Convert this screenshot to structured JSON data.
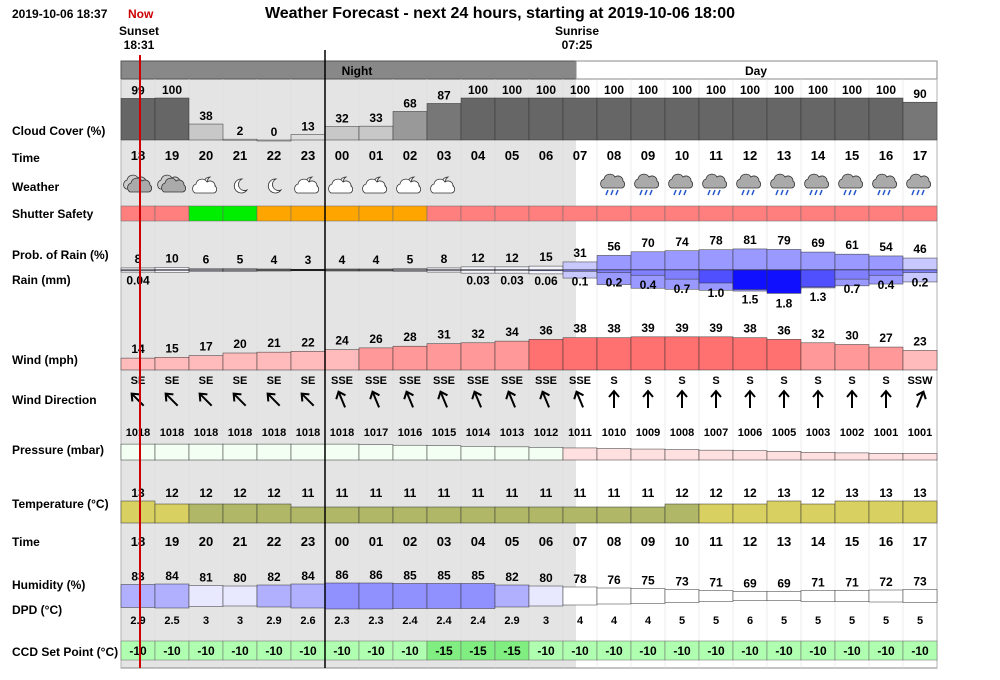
{
  "header": {
    "datetime": "2019-10-06 18:37",
    "now_label": "Now",
    "title": "Weather Forecast - next 24 hours, starting at 2019-10-06 18:00",
    "sunset_label": "Sunset",
    "sunset_time": "18:31",
    "sunrise_label": "Sunrise",
    "sunrise_time": "07:25"
  },
  "periods": {
    "night": "Night",
    "day": "Day"
  },
  "row_labels": {
    "cloud": "Cloud Cover (%)",
    "time": "Time",
    "weather": "Weather",
    "shutter": "Shutter Safety",
    "rain_prob": "Prob. of Rain (%)",
    "rain_mm": "Rain (mm)",
    "wind": "Wind (mph)",
    "wind_dir": "Wind Direction",
    "pressure": "Pressure (mbar)",
    "temperature": "Temperature (°C)",
    "time2": "Time",
    "humidity": "Humidity (%)",
    "dpd": "DPD (°C)",
    "ccd": "CCD Set Point (°C)"
  },
  "colors": {
    "night_bg": "#e4e4e4",
    "cloud": "#666666",
    "shutter_unsafe": "#ff7f7f",
    "shutter_safe": "#00ee00",
    "shutter_marginal": "#ffa500",
    "rain": "#8080ff",
    "wind": "#ff7f7f",
    "pressure": "#ffe0e0",
    "temperature_warm": "#d8d060",
    "temperature_cool": "#b0b868",
    "humidity": "#b0b0ff",
    "ccd": "#b0ffb0",
    "now_line": "#cc0000"
  },
  "chart_data": {
    "type": "table",
    "hours": [
      "18",
      "19",
      "20",
      "21",
      "22",
      "23",
      "00",
      "01",
      "02",
      "03",
      "04",
      "05",
      "06",
      "07",
      "08",
      "09",
      "10",
      "11",
      "12",
      "13",
      "14",
      "15",
      "16",
      "17"
    ],
    "cloud_cover": [
      99,
      100,
      38,
      2,
      0,
      13,
      32,
      33,
      68,
      87,
      100,
      100,
      100,
      100,
      100,
      100,
      100,
      100,
      100,
      100,
      100,
      100,
      100,
      90
    ],
    "weather_icons": [
      "cloudy",
      "cloudy",
      "partly-cloudy-night",
      "moon",
      "moon",
      "partly-cloudy-night",
      "partly-cloudy-night",
      "partly-cloudy-night",
      "partly-cloudy-night",
      "partly-cloudy-night",
      "",
      "",
      "",
      "",
      "rain",
      "rain",
      "rain",
      "rain",
      "rain",
      "rain",
      "rain",
      "rain",
      "rain",
      "rain"
    ],
    "shutter_safety": [
      "unsafe",
      "unsafe",
      "safe",
      "safe",
      "marginal",
      "marginal",
      "marginal",
      "marginal",
      "marginal",
      "unsafe",
      "unsafe",
      "unsafe",
      "unsafe",
      "unsafe",
      "unsafe",
      "unsafe",
      "unsafe",
      "unsafe",
      "unsafe",
      "unsafe",
      "unsafe",
      "unsafe",
      "unsafe",
      "unsafe"
    ],
    "rain_prob": [
      8,
      10,
      6,
      5,
      4,
      3,
      4,
      4,
      5,
      8,
      12,
      12,
      15,
      31,
      56,
      70,
      74,
      78,
      81,
      79,
      69,
      61,
      54,
      46
    ],
    "rain_mm_labels": [
      "0.04",
      "",
      "",
      "",
      "",
      "",
      "",
      "",
      "",
      "",
      "0.03",
      "0.03",
      "0.06",
      "0.1",
      "0.2",
      "0.4",
      "0.7",
      "1.0",
      "1.5",
      "1.8",
      "1.3",
      "0.7",
      "0.4",
      "0.2"
    ],
    "rain_mm": [
      0.04,
      0,
      0,
      0,
      0,
      0,
      0,
      0,
      0,
      0,
      0.03,
      0.03,
      0.06,
      0.1,
      0.2,
      0.4,
      0.7,
      1.0,
      1.5,
      1.8,
      1.3,
      0.7,
      0.4,
      0.2
    ],
    "wind_mph": [
      14,
      15,
      17,
      20,
      21,
      22,
      24,
      26,
      28,
      31,
      32,
      34,
      36,
      38,
      38,
      39,
      39,
      39,
      38,
      36,
      32,
      30,
      27,
      23
    ],
    "wind_direction": [
      "SE",
      "SE",
      "SE",
      "SE",
      "SE",
      "SE",
      "SSE",
      "SSE",
      "SSE",
      "SSE",
      "SSE",
      "SSE",
      "SSE",
      "SSE",
      "S",
      "S",
      "S",
      "S",
      "S",
      "S",
      "S",
      "S",
      "S",
      "SSW"
    ],
    "pressure_mbar": [
      1018,
      1018,
      1018,
      1018,
      1018,
      1018,
      1018,
      1017,
      1016,
      1015,
      1014,
      1013,
      1012,
      1011,
      1010,
      1009,
      1008,
      1007,
      1006,
      1005,
      1003,
      1002,
      1001,
      1001
    ],
    "temperature_c": [
      13,
      12,
      12,
      12,
      12,
      11,
      11,
      11,
      11,
      11,
      11,
      11,
      11,
      11,
      11,
      11,
      12,
      12,
      12,
      13,
      12,
      13,
      13,
      13
    ],
    "humidity_pct": [
      83,
      84,
      81,
      80,
      82,
      84,
      86,
      86,
      85,
      85,
      85,
      82,
      80,
      78,
      76,
      75,
      73,
      71,
      69,
      69,
      71,
      71,
      72,
      73
    ],
    "dpd_c": [
      "2.9",
      "2.5",
      "3",
      "3",
      "2.9",
      "2.6",
      "2.3",
      "2.3",
      "2.4",
      "2.4",
      "2.4",
      "2.9",
      "3",
      "4",
      "4",
      "4",
      "5",
      "5",
      "6",
      "5",
      "5",
      "5",
      "5",
      "5"
    ],
    "ccd_setpoint_c": [
      "-10",
      "-10",
      "-10",
      "-10",
      "-10",
      "-10",
      "-10",
      "-10",
      "-10",
      "-15",
      "-15",
      "-15",
      "-10",
      "-10",
      "-10",
      "-10",
      "-10",
      "-10",
      "-10",
      "-10",
      "-10",
      "-10",
      "-10",
      "-10"
    ]
  }
}
